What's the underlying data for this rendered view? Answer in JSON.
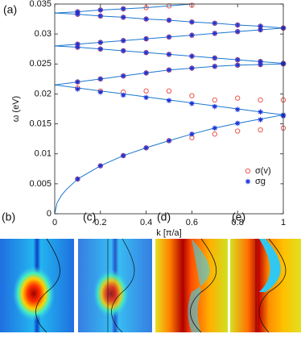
{
  "chart_data": {
    "type": "line",
    "panel_label": "(a)",
    "xlabel": "k [π/a]",
    "ylabel": "ω (eV)",
    "xlim": [
      0,
      1
    ],
    "ylim": [
      0,
      0.035
    ],
    "xticks": [
      0,
      0.2,
      0.4,
      0.6,
      0.8,
      1
    ],
    "yticks": [
      0,
      0.005,
      0.01,
      0.015,
      0.02,
      0.025,
      0.03,
      0.035
    ],
    "legend": "lower right",
    "series": [
      {
        "type": "line",
        "color": "#1a78d0",
        "x": [
          0,
          0.01,
          0.03,
          0.05,
          0.1,
          0.2,
          0.3,
          0.4,
          0.5,
          0.6,
          0.7,
          0.8,
          0.9,
          1
        ],
        "values": [
          0,
          0.0018,
          0.0031,
          0.004,
          0.0058,
          0.008,
          0.0097,
          0.011,
          0.0122,
          0.0133,
          0.0143,
          0.0151,
          0.0158,
          0.0165
        ]
      },
      {
        "type": "line",
        "color": "#1a78d0",
        "x": [
          0,
          0.1,
          0.2,
          0.3,
          0.4,
          0.5,
          0.6,
          0.7,
          0.8,
          0.9,
          1
        ],
        "values": [
          0.0215,
          0.021,
          0.0205,
          0.02,
          0.0195,
          0.019,
          0.0185,
          0.018,
          0.0175,
          0.017,
          0.0165
        ]
      },
      {
        "type": "line",
        "color": "#1a78d0",
        "x": [
          0,
          0.1,
          0.2,
          0.3,
          0.4,
          0.5,
          0.6,
          0.7,
          0.8,
          0.9,
          1
        ],
        "values": [
          0.0215,
          0.022,
          0.0225,
          0.023,
          0.0235,
          0.024,
          0.0243,
          0.0246,
          0.0248,
          0.0249,
          0.025
        ]
      },
      {
        "type": "line",
        "color": "#1a78d0",
        "x": [
          0,
          0.1,
          0.2,
          0.3,
          0.4,
          0.5,
          0.6,
          0.7,
          0.8,
          0.9,
          1
        ],
        "values": [
          0.028,
          0.0278,
          0.0275,
          0.0272,
          0.0269,
          0.0266,
          0.0263,
          0.026,
          0.0257,
          0.0254,
          0.0251
        ]
      },
      {
        "type": "line",
        "color": "#1a78d0",
        "x": [
          0,
          0.1,
          0.2,
          0.3,
          0.4,
          0.5,
          0.6,
          0.7,
          0.8,
          0.9,
          1
        ],
        "values": [
          0.028,
          0.0283,
          0.0286,
          0.0289,
          0.0292,
          0.0295,
          0.0298,
          0.0301,
          0.0304,
          0.0307,
          0.031
        ]
      },
      {
        "type": "line",
        "color": "#1a78d0",
        "x": [
          0,
          0.1,
          0.2,
          0.3,
          0.4,
          0.5,
          0.6,
          0.7,
          0.8,
          0.9,
          1
        ],
        "values": [
          0.0335,
          0.0333,
          0.033,
          0.0328,
          0.0325,
          0.0323,
          0.032,
          0.0318,
          0.0315,
          0.0313,
          0.031
        ]
      },
      {
        "type": "line",
        "color": "#1a78d0",
        "x": [
          0,
          0.1,
          0.2,
          0.3,
          0.4,
          0.5,
          0.6
        ],
        "values": [
          0.0335,
          0.0337,
          0.034,
          0.0342,
          0.0344,
          0.0347,
          0.035
        ]
      },
      {
        "type": "scatter",
        "marker": "circle",
        "name": "σ(v)",
        "color": "#e8453c",
        "x": [
          0.1,
          0.2,
          0.3,
          0.4,
          0.5,
          0.6,
          0.7,
          0.8,
          0.9,
          1,
          0.1,
          0.2,
          0.3,
          0.4,
          0.5,
          0.6,
          0.7,
          0.8,
          0.9,
          1,
          0.1,
          0.2,
          0.3,
          0.4,
          0.5,
          0.6,
          0.7,
          0.8,
          0.9,
          1,
          0.1,
          0.2,
          0.3,
          0.4,
          0.5,
          0.6,
          0.7,
          0.8,
          0.9,
          1,
          0.1,
          0.2,
          0.3,
          0.4,
          0.5,
          0.6,
          0.7,
          0.8,
          0.9,
          1,
          0.1,
          0.2,
          0.3,
          0.4,
          0.5,
          0.6,
          0.7,
          0.8,
          0.9,
          1,
          0.1,
          0.2,
          0.3,
          0.4,
          0.5,
          0.6
        ],
        "values": [
          0.0058,
          0.008,
          0.0097,
          0.011,
          0.0122,
          0.0127,
          0.0133,
          0.0138,
          0.014,
          0.0143,
          0.021,
          0.0205,
          0.0203,
          0.0205,
          0.0205,
          0.0197,
          0.019,
          0.0193,
          0.019,
          0.019,
          0.022,
          0.0225,
          0.023,
          0.0235,
          0.024,
          0.0243,
          0.0246,
          0.0248,
          0.0249,
          0.025,
          0.0278,
          0.0275,
          0.0272,
          0.0269,
          0.0266,
          0.0263,
          0.026,
          0.0257,
          0.0254,
          0.0251,
          0.0283,
          0.0286,
          0.0289,
          0.0292,
          0.0295,
          0.0298,
          0.0301,
          0.0304,
          0.0307,
          0.031,
          0.0333,
          0.033,
          0.0328,
          0.0325,
          0.0323,
          0.032,
          0.0318,
          0.0315,
          0.0313,
          0.031,
          0.0337,
          0.034,
          0.0342,
          0.0344,
          0.0347,
          0.0348
        ]
      },
      {
        "type": "scatter",
        "marker": "star",
        "name": "σg",
        "color": "#1a2fd6",
        "x": [
          0.1,
          0.2,
          0.3,
          0.4,
          0.5,
          0.6,
          0.7,
          0.8,
          0.9,
          1,
          0.1,
          0.2,
          0.3,
          0.4,
          0.5,
          0.6,
          0.7,
          0.8,
          0.9,
          1,
          0.1,
          0.2,
          0.3,
          0.4,
          0.5,
          0.6,
          0.7,
          0.8,
          0.9,
          1,
          0.1,
          0.2,
          0.3,
          0.4,
          0.5,
          0.6,
          0.7,
          0.8,
          0.9,
          1,
          0.1,
          0.2,
          0.3,
          0.4,
          0.5,
          0.6,
          0.7,
          0.8,
          0.9,
          1,
          0.1,
          0.2,
          0.3,
          0.4,
          0.5,
          0.6,
          0.7,
          0.8,
          0.9,
          1,
          0.1,
          0.2,
          0.3
        ],
        "values": [
          0.0058,
          0.008,
          0.0097,
          0.011,
          0.0122,
          0.0133,
          0.0143,
          0.0151,
          0.0157,
          0.0163,
          0.0208,
          0.0203,
          0.0198,
          0.0194,
          0.0189,
          0.0184,
          0.0179,
          0.0174,
          0.017,
          0.0165,
          0.022,
          0.0225,
          0.023,
          0.0235,
          0.024,
          0.0243,
          0.0246,
          0.0248,
          0.0249,
          0.025,
          0.0278,
          0.0275,
          0.0272,
          0.0269,
          0.0266,
          0.0263,
          0.026,
          0.0257,
          0.0254,
          0.0251,
          0.0283,
          0.0286,
          0.0289,
          0.0292,
          0.0295,
          0.0298,
          0.0301,
          0.0304,
          0.0307,
          0.031,
          0.0333,
          0.033,
          0.0328,
          0.0325,
          0.0323,
          0.032,
          0.0318,
          0.0315,
          0.0313,
          0.031,
          0.0337,
          0.034,
          0.0342
        ]
      }
    ]
  },
  "panels": [
    "(b)",
    "(c)",
    "(d)",
    "(e)"
  ]
}
